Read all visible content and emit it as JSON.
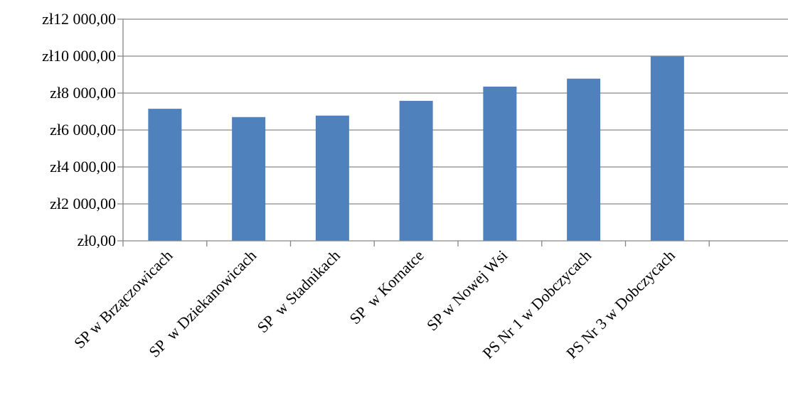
{
  "chart_data": {
    "type": "bar",
    "title": "",
    "xlabel": "",
    "ylabel": "",
    "categories": [
      "SP w Brzączowicach",
      "SP  w Dziekanowicach",
      "SP  w Stadnikach",
      "SP  w Kornatce",
      "SP w Nowej Wsi",
      "PS Nr 1 w Dobczycach",
      "PS Nr 3 w Dobczycach"
    ],
    "series": [
      {
        "values": [
          7150,
          6700,
          6780,
          7580,
          8350,
          8780,
          9980
        ],
        "color": "#4F81BD"
      }
    ],
    "ylim": [
      0,
      12000
    ],
    "y_ticks": [
      0,
      2000,
      4000,
      6000,
      8000,
      10000,
      12000
    ],
    "y_tick_labels": [
      "zł0,00",
      "zł2 000,00",
      "zł4 000,00",
      "zł6 000,00",
      "zł8 000,00",
      "zł10 000,00",
      "zł12 000,00"
    ],
    "category_slots": 8,
    "grid": true,
    "legend": "none"
  }
}
